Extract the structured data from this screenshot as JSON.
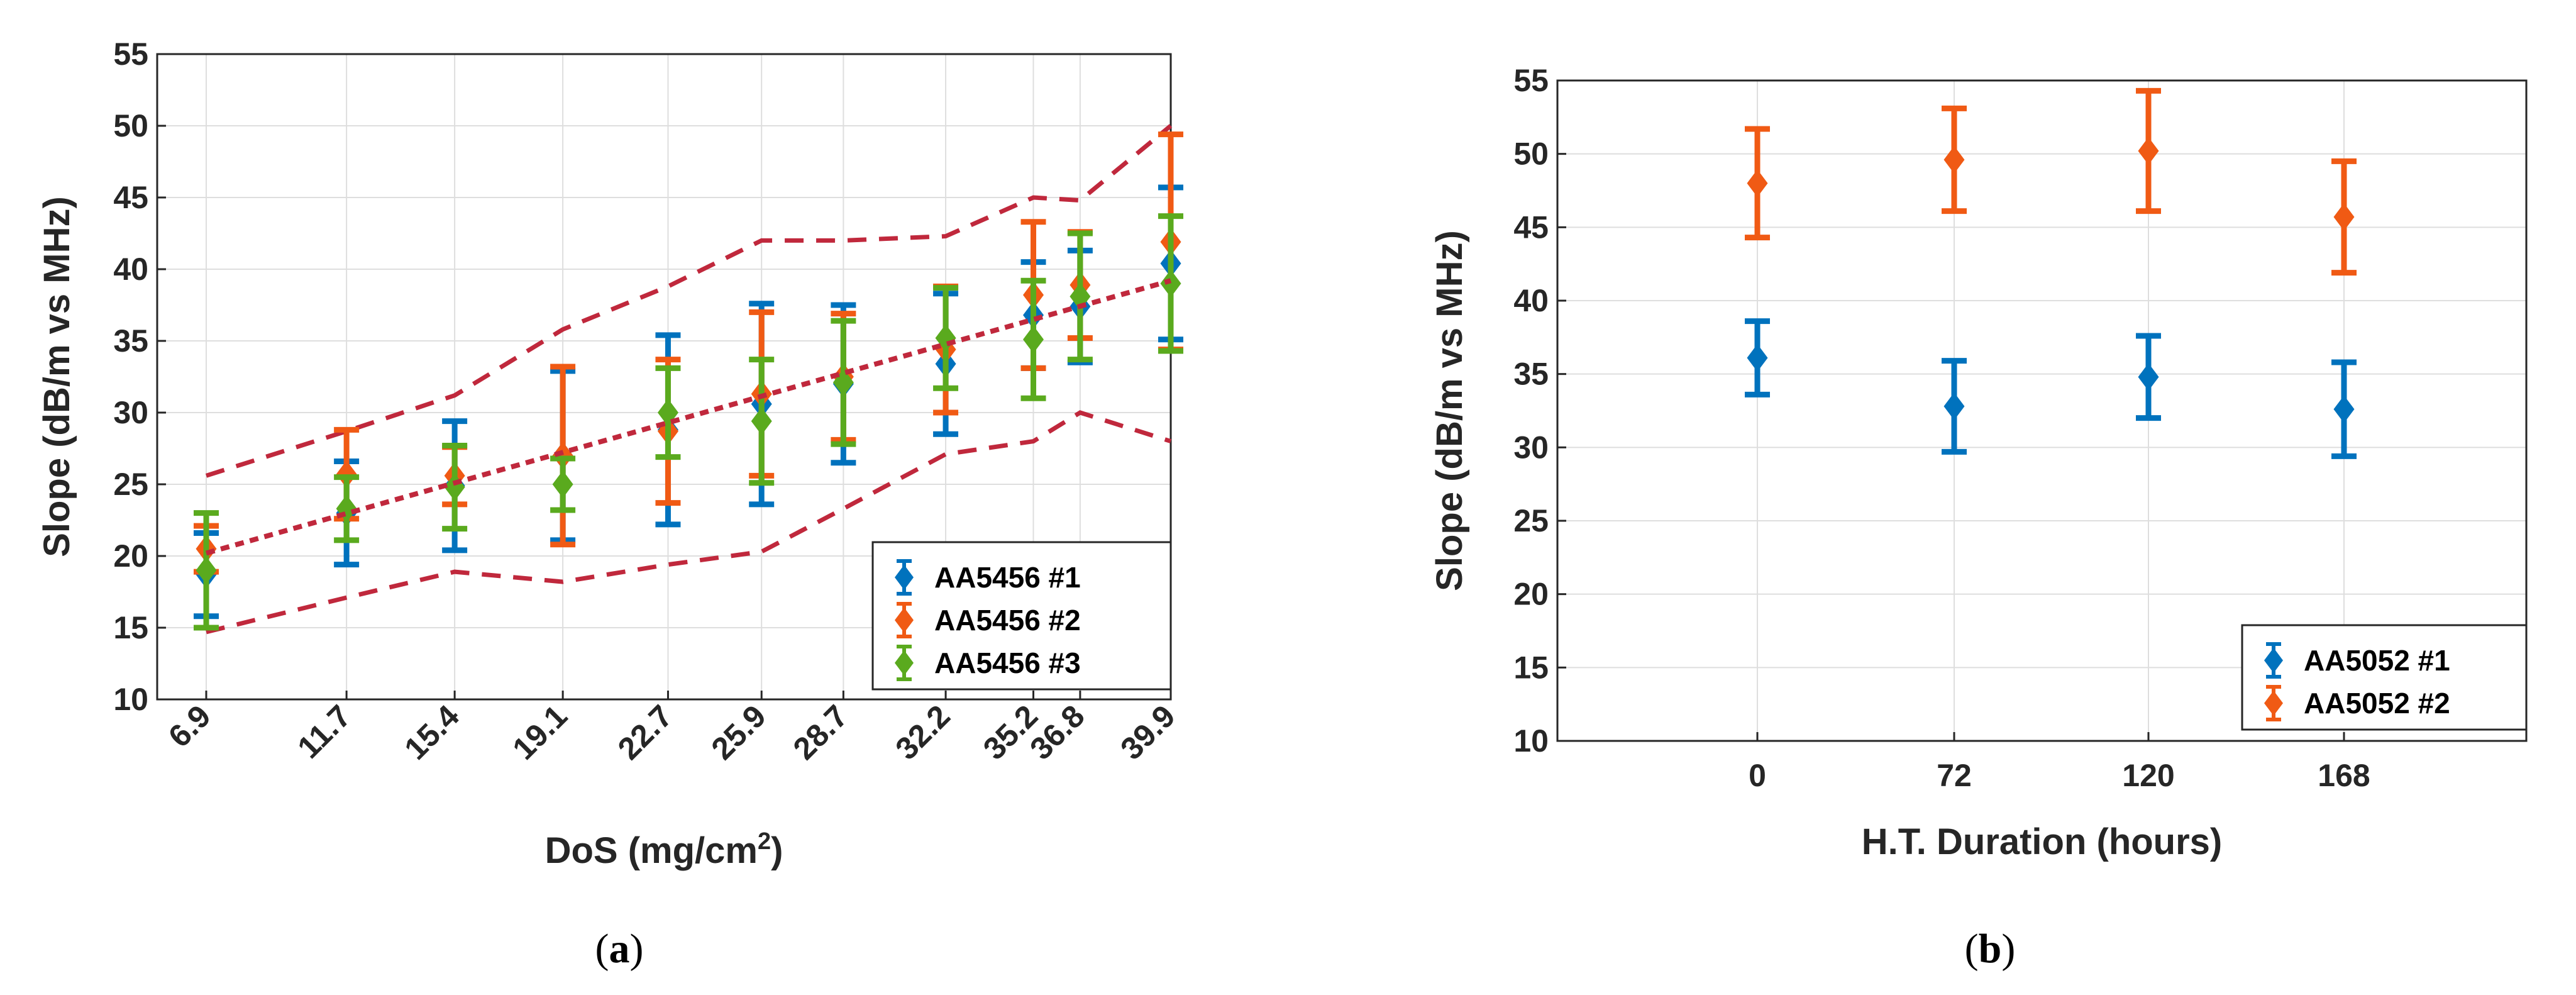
{
  "chart_data": [
    {
      "type": "scatter",
      "panel_label": "a",
      "xlabel": "DoS (mg/cm",
      "xlabel_superscript": "2",
      "xlabel_suffix": ")",
      "ylabel": "Slope (dB/m vs MHz)",
      "ylim": [
        10,
        55
      ],
      "yticks": [
        10,
        15,
        20,
        25,
        30,
        35,
        40,
        45,
        50,
        55
      ],
      "x_ticks": [
        6.9,
        11.7,
        15.4,
        19.1,
        22.7,
        25.9,
        28.7,
        32.2,
        35.2,
        36.8,
        39.9
      ],
      "x_tick_labels": [
        "6.9",
        "11.7",
        "15.4",
        "19.1",
        "22.7",
        "25.9",
        "28.7",
        "32.2",
        "35.2",
        "36.8",
        "39.9"
      ],
      "xlim": [
        4.9,
        39.9
      ],
      "grid": true,
      "legend_position": "bottom-right",
      "colors": {
        "s1": "#0072BD",
        "s2": "#F05A14",
        "s3": "#5AAA1E",
        "bound": "#C0283C"
      },
      "series": [
        {
          "name": "AA5456 #1",
          "color": "#0072BD",
          "x": [
            6.9,
            11.7,
            15.4,
            19.1,
            22.7,
            25.9,
            28.7,
            32.2,
            35.2,
            36.8,
            39.9
          ],
          "y": [
            18.7,
            23.0,
            24.9,
            27.0,
            28.8,
            30.6,
            32.0,
            33.4,
            36.8,
            37.4,
            40.4
          ],
          "err": [
            2.9,
            3.6,
            4.5,
            5.9,
            6.6,
            7.0,
            5.5,
            4.9,
            3.7,
            3.9,
            5.3
          ]
        },
        {
          "name": "AA5456 #2",
          "color": "#F05A14",
          "x": [
            6.9,
            11.7,
            15.4,
            19.1,
            22.7,
            25.9,
            28.7,
            32.2,
            35.2,
            36.8,
            39.9
          ],
          "y": [
            20.5,
            25.7,
            25.6,
            27.0,
            28.7,
            31.3,
            32.5,
            34.4,
            38.2,
            38.9,
            41.9
          ],
          "err": [
            1.6,
            3.1,
            2.0,
            6.2,
            5.0,
            5.7,
            4.4,
            4.4,
            5.1,
            3.7,
            7.5
          ]
        },
        {
          "name": "AA5456 #3",
          "color": "#5AAA1E",
          "x": [
            6.9,
            11.7,
            15.4,
            19.1,
            22.7,
            25.9,
            28.7,
            32.2,
            35.2,
            36.8,
            39.9
          ],
          "y": [
            19.0,
            23.3,
            24.8,
            25.0,
            30.0,
            29.4,
            32.1,
            35.2,
            35.1,
            38.1,
            39.0
          ],
          "err": [
            4.0,
            2.2,
            2.9,
            1.8,
            3.1,
            4.3,
            4.3,
            3.5,
            4.1,
            4.4,
            4.7
          ]
        }
      ],
      "fit_line": {
        "x": [
          6.9,
          39.9
        ],
        "y": [
          20.2,
          39.2
        ]
      },
      "upper_bound": {
        "x": [
          6.9,
          11.7,
          15.4,
          19.1,
          22.7,
          25.9,
          28.7,
          32.2,
          35.2,
          36.8,
          39.9
        ],
        "y": [
          25.6,
          28.7,
          31.2,
          35.8,
          38.8,
          42.0,
          42.0,
          42.3,
          45.0,
          44.8,
          50.0
        ]
      },
      "lower_bound": {
        "x": [
          6.9,
          11.7,
          15.4,
          19.1,
          22.7,
          25.9,
          28.7,
          32.2,
          35.2,
          36.8,
          39.9
        ],
        "y": [
          14.7,
          17.1,
          18.9,
          18.2,
          19.4,
          20.3,
          23.3,
          27.1,
          28.0,
          30.0,
          28.0
        ]
      }
    },
    {
      "type": "scatter",
      "panel_label": "b",
      "xlabel": "H.T. Duration (hours)",
      "ylabel": "Slope (dB/m vs MHz)",
      "ylim": [
        10,
        55
      ],
      "yticks": [
        10,
        15,
        20,
        25,
        30,
        35,
        40,
        45,
        50,
        55
      ],
      "x_ticks": [
        0,
        72,
        120,
        168
      ],
      "x_tick_labels": [
        "0",
        "72",
        "120",
        "168"
      ],
      "grid": true,
      "legend_position": "bottom-right",
      "series": [
        {
          "name": "AA5052 #1",
          "color": "#0072BD",
          "x": [
            0,
            72,
            120,
            168
          ],
          "y": [
            36.1,
            32.8,
            34.8,
            32.6
          ],
          "err": [
            2.5,
            3.1,
            2.8,
            3.2
          ]
        },
        {
          "name": "AA5052 #2",
          "color": "#F05A14",
          "x": [
            0,
            72,
            120,
            168
          ],
          "y": [
            48.0,
            49.6,
            50.2,
            45.7
          ],
          "err": [
            3.7,
            3.5,
            4.1,
            3.8
          ]
        }
      ]
    }
  ]
}
